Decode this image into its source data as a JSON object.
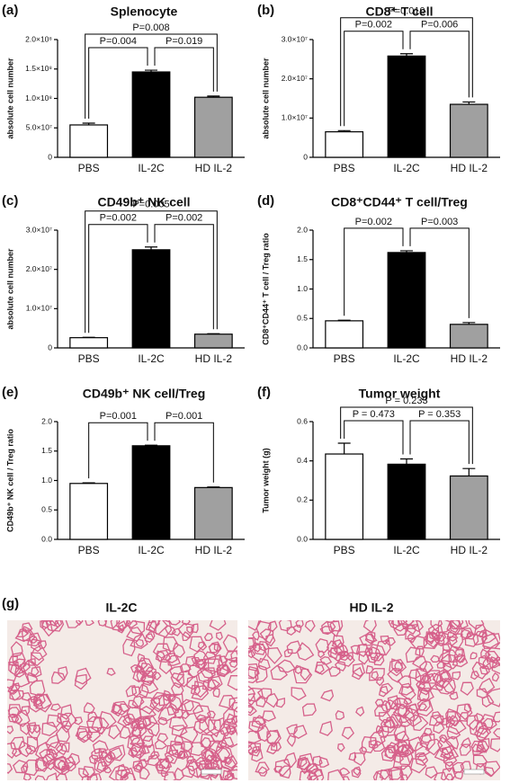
{
  "chart_data": [
    {
      "type": "bar",
      "panel": "(a)",
      "title": "Splenocyte",
      "y_label": "absolute cell number",
      "categories": [
        "PBS",
        "IL-2C",
        "HD IL-2"
      ],
      "values": [
        55000000,
        145000000,
        102000000
      ],
      "errors": [
        3000000,
        3000000,
        2000000
      ],
      "colors": [
        "#ffffff",
        "#000000",
        "#a0a0a0"
      ],
      "ylim": [
        0,
        200000000
      ],
      "yticks": [
        0,
        {
          "value": 50000000,
          "label": "5.0×10⁷"
        },
        {
          "value": 100000000,
          "label": "1.0×10⁸"
        },
        {
          "value": 150000000,
          "label": "1.5×10⁸"
        },
        {
          "value": 200000000,
          "label": "2.0×10⁸"
        }
      ],
      "p_values": [
        "P=0.004",
        "P=0.019",
        "P=0.008"
      ]
    },
    {
      "type": "bar",
      "panel": "(b)",
      "title": "CD8⁺ T cell",
      "y_label": "absolute cell number",
      "categories": [
        "PBS",
        "IL-2C",
        "HD IL-2"
      ],
      "values": [
        6500000,
        25800000,
        13500000
      ],
      "errors": [
        300000,
        600000,
        600000
      ],
      "colors": [
        "#ffffff",
        "#000000",
        "#a0a0a0"
      ],
      "ylim": [
        0,
        30000000
      ],
      "yticks": [
        0,
        {
          "value": 10000000,
          "label": "1.0×10⁷"
        },
        {
          "value": 20000000,
          "label": "2.0×10⁷"
        },
        {
          "value": 30000000,
          "label": "3.0×10⁷"
        }
      ],
      "p_values": [
        "P=0.002",
        "P=0.006",
        "P=0.010"
      ]
    },
    {
      "type": "bar",
      "panel": "(c)",
      "title": "CD49b⁺ NK cell",
      "y_label": "absolute cell number",
      "categories": [
        "PBS",
        "IL-2C",
        "HD IL-2"
      ],
      "values": [
        2600000,
        25000000,
        3500000
      ],
      "errors": [
        100000,
        700000,
        100000
      ],
      "colors": [
        "#ffffff",
        "#000000",
        "#a0a0a0"
      ],
      "ylim": [
        0,
        30000000
      ],
      "yticks": [
        0,
        {
          "value": 10000000,
          "label": "1.0×10⁷"
        },
        {
          "value": 20000000,
          "label": "2.0×10⁷"
        },
        {
          "value": 30000000,
          "label": "3.0×10⁷"
        }
      ],
      "p_values": [
        "P=0.002",
        "P=0.002",
        "P=0.005"
      ]
    },
    {
      "type": "bar",
      "panel": "(d)",
      "title": "CD8⁺CD44⁺ T cell/Treg",
      "y_label": "CD8⁺CD44⁺ T cell / Treg ratio",
      "categories": [
        "PBS",
        "IL-2C",
        "HD IL-2"
      ],
      "values": [
        0.46,
        1.62,
        0.4
      ],
      "errors": [
        0.01,
        0.03,
        0.03
      ],
      "colors": [
        "#ffffff",
        "#000000",
        "#a0a0a0"
      ],
      "ylim": [
        0,
        2
      ],
      "yticks": [
        {
          "value": 0,
          "label": "0.0"
        },
        0.5,
        {
          "value": 1,
          "label": "1.0"
        },
        1.5,
        {
          "value": 2,
          "label": "2.0"
        }
      ],
      "p_values": [
        "P=0.002",
        "P=0.003"
      ]
    },
    {
      "type": "bar",
      "panel": "(e)",
      "title": "CD49b⁺ NK cell/Treg",
      "y_label": "CD49b⁺ NK cell / Treg ratio",
      "categories": [
        "PBS",
        "IL-2C",
        "HD IL-2"
      ],
      "values": [
        0.95,
        1.59,
        0.88
      ],
      "errors": [
        0.01,
        0.01,
        0.01
      ],
      "colors": [
        "#ffffff",
        "#000000",
        "#a0a0a0"
      ],
      "ylim": [
        0,
        2
      ],
      "yticks": [
        {
          "value": 0,
          "label": "0.0"
        },
        0.5,
        {
          "value": 1,
          "label": "1.0"
        },
        1.5,
        {
          "value": 2,
          "label": "2.0"
        }
      ],
      "p_values": [
        "P=0.001",
        "P=0.001"
      ]
    },
    {
      "type": "bar",
      "panel": "(f)",
      "title": "Tumor weight",
      "y_label": "Tumor weight (g)",
      "categories": [
        "PBS",
        "IL-2C",
        "HD IL-2"
      ],
      "values": [
        0.435,
        0.383,
        0.323
      ],
      "errors": [
        0.055,
        0.027,
        0.038
      ],
      "colors": [
        "#ffffff",
        "#000000",
        "#a0a0a0"
      ],
      "ylim": [
        0,
        0.6
      ],
      "yticks": [
        {
          "value": 0,
          "label": "0.0"
        },
        0.2,
        0.4,
        0.6
      ],
      "p_values": [
        "P = 0.473",
        "P = 0.353",
        "P = 0.233"
      ]
    }
  ],
  "panel_g": {
    "label": "(g)",
    "images": [
      {
        "title": "IL-2C"
      },
      {
        "title": "HD IL-2"
      }
    ]
  }
}
